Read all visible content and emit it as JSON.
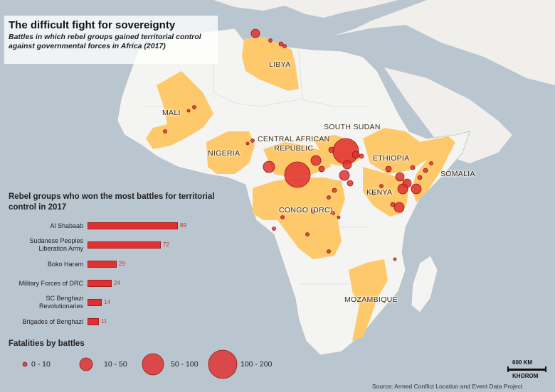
{
  "title": "The difficult fight for sovereignty",
  "subtitle": "Battles in which rebel groups gained territorial control against governmental forces in Africa (2017)",
  "countries": [
    {
      "name": "LIBYA"
    },
    {
      "name": "MALI"
    },
    {
      "name": "NIGERIA"
    },
    {
      "name": "CENTRAL AFRICAN\nREPUBLIC"
    },
    {
      "name": "SOUTH SUDAN"
    },
    {
      "name": "ETHIOPIA"
    },
    {
      "name": "SOMALIA"
    },
    {
      "name": "KENYA"
    },
    {
      "name": "CONGO (DRC)"
    },
    {
      "name": "MOZAMBIQUE"
    }
  ],
  "bar_chart": {
    "title": "Rebel groups who won the most battles for territorial control in 2017",
    "groups": [
      {
        "label": "Al Shabaab",
        "value": 89
      },
      {
        "label": "Sudanese Peoples Liberation Army",
        "value": 72
      },
      {
        "label": "Boko Haram",
        "value": 29
      },
      {
        "label": "Military Forces of DRC",
        "value": 24
      },
      {
        "label": "SC Benghazi Revolutionaries",
        "value": 14
      },
      {
        "label": "Brigades of Benghazi",
        "value": 11
      }
    ]
  },
  "legend": {
    "title": "Fatalities by battles",
    "items": [
      "0 - 10",
      "10 - 50",
      "50 - 100",
      "100 - 200"
    ]
  },
  "scale": {
    "distance": "600 KM",
    "credit": "KHOROM"
  },
  "source": "Source: Armed Conflict Location and Event Data Project",
  "colors": {
    "sea": "#b9c6cf",
    "land": "#f4f4f2",
    "highlight": "#fdc96b",
    "bubble": "#e03131",
    "bubble_stroke": "#8b1a1a"
  }
}
